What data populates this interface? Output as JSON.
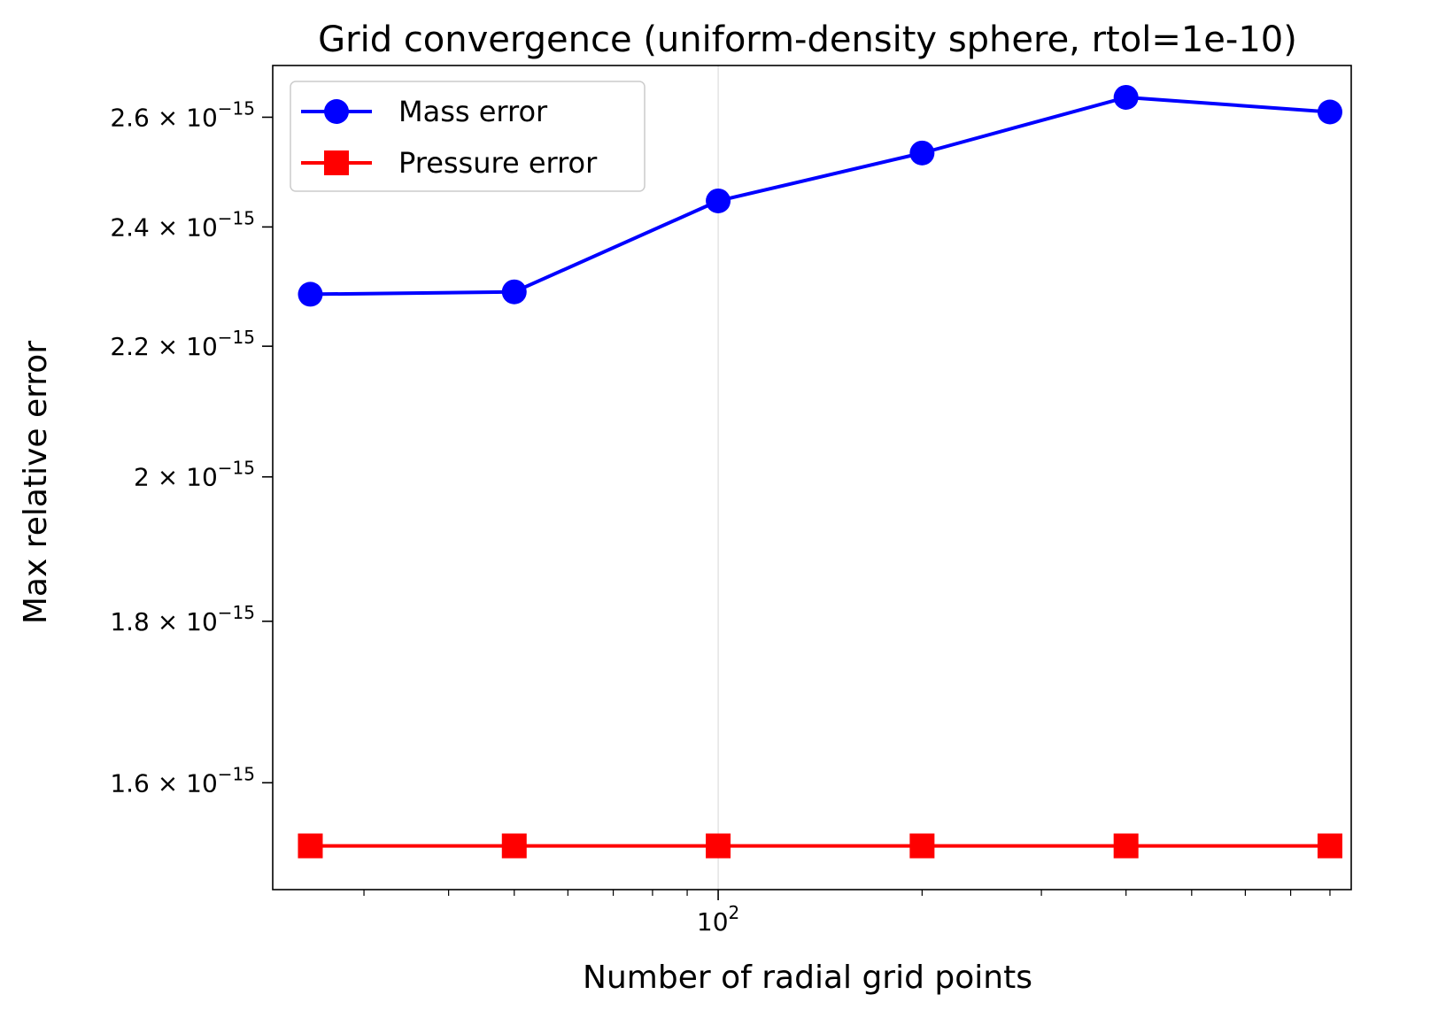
{
  "chart_data": {
    "type": "line",
    "title": "Grid convergence (uniform-density sphere, rtol=1e-10)",
    "xlabel": "Number of radial grid points",
    "ylabel": "Max relative error",
    "xscale": "log",
    "yscale": "log",
    "xlim": [
      22,
      860
    ],
    "ylim": [
      1.48e-15,
      2.7e-15
    ],
    "x": [
      25,
      50,
      100,
      200,
      400,
      800
    ],
    "series": [
      {
        "name": "Mass error",
        "color": "#0000ff",
        "marker": "circle",
        "values": [
          2.285e-15,
          2.289e-15,
          2.446e-15,
          2.533e-15,
          2.638e-15,
          2.61e-15
        ]
      },
      {
        "name": "Pressure error",
        "color": "#ff0000",
        "marker": "square",
        "values": [
          1.528e-15,
          1.528e-15,
          1.528e-15,
          1.528e-15,
          1.528e-15,
          1.528e-15
        ]
      }
    ],
    "x_major_ticks": [
      {
        "value": 100,
        "base": "10",
        "exp": "2"
      }
    ],
    "x_minor_ticks": [
      30,
      40,
      50,
      60,
      70,
      80,
      90,
      200,
      300,
      400,
      500,
      600,
      700,
      800
    ],
    "y_ticks": [
      {
        "value": 1.6e-15,
        "mantissa": "1.6",
        "base": "10",
        "exp": "−15"
      },
      {
        "value": 1.8e-15,
        "mantissa": "1.8",
        "base": "10",
        "exp": "−15"
      },
      {
        "value": 2e-15,
        "mantissa": "2",
        "base": "10",
        "exp": "−15"
      },
      {
        "value": 2.2e-15,
        "mantissa": "2.2",
        "base": "10",
        "exp": "−15"
      },
      {
        "value": 2.4e-15,
        "mantissa": "2.4",
        "base": "10",
        "exp": "−15"
      },
      {
        "value": 2.6e-15,
        "mantissa": "2.6",
        "base": "10",
        "exp": "−15"
      }
    ],
    "grid": "x-major only",
    "legend_position": "upper-left"
  }
}
